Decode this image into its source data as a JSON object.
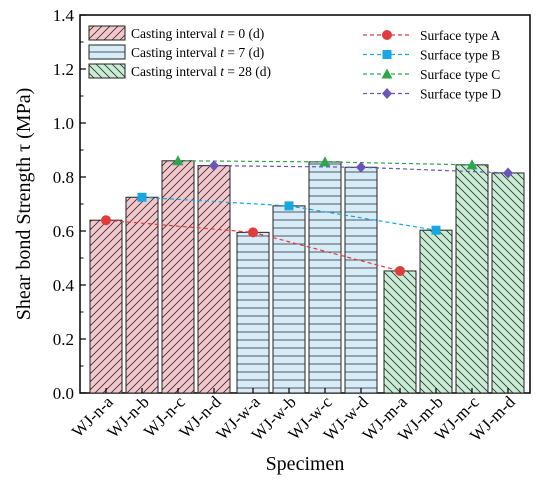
{
  "chart_data": {
    "type": "bar",
    "xlabel": "Specimen",
    "ylabel": "Shear bond Strength τ (MPa)",
    "ylim": [
      0,
      1.4
    ],
    "yticks": [
      "0.0",
      "0.2",
      "0.4",
      "0.6",
      "0.8",
      "1.0",
      "1.2",
      "1.4"
    ],
    "grid": false,
    "groups": [
      {
        "legend_prefix": "Casting interval ",
        "legend_var": "t",
        "legend_suffix": " = 0 (d)",
        "fill": "#f4c7cc",
        "hatch": "diagonal",
        "specimens": [
          "WJ-n-a",
          "WJ-n-b",
          "WJ-n-c",
          "WJ-n-d"
        ],
        "values": [
          0.64,
          0.725,
          0.86,
          0.842
        ]
      },
      {
        "legend_prefix": "Casting interval ",
        "legend_var": "t",
        "legend_suffix": " = 7 (d)",
        "fill": "#d6ecf8",
        "hatch": "horizontal",
        "specimens": [
          "WJ-w-a",
          "WJ-w-b",
          "WJ-w-c",
          "WJ-w-d"
        ],
        "values": [
          0.595,
          0.693,
          0.856,
          0.836
        ]
      },
      {
        "legend_prefix": "Casting interval ",
        "legend_var": "t",
        "legend_suffix": " = 28 (d)",
        "fill": "#c9ecd5",
        "hatch": "antidiagonal",
        "specimens": [
          "WJ-m-a",
          "WJ-m-b",
          "WJ-m-c",
          "WJ-m-d"
        ],
        "values": [
          0.452,
          0.603,
          0.845,
          0.815
        ]
      }
    ],
    "series": [
      {
        "name": "Surface type A",
        "color": "#e03c3c",
        "marker": "circle",
        "values": [
          0.64,
          0.595,
          0.452
        ]
      },
      {
        "name": "Surface type B",
        "color": "#18a7e0",
        "marker": "square",
        "values": [
          0.725,
          0.693,
          0.603
        ]
      },
      {
        "name": "Surface type C",
        "color": "#2ea64a",
        "marker": "triangle",
        "values": [
          0.86,
          0.856,
          0.845
        ]
      },
      {
        "name": "Surface type D",
        "color": "#6a55b8",
        "marker": "diamond",
        "values": [
          0.842,
          0.836,
          0.815
        ]
      }
    ]
  }
}
